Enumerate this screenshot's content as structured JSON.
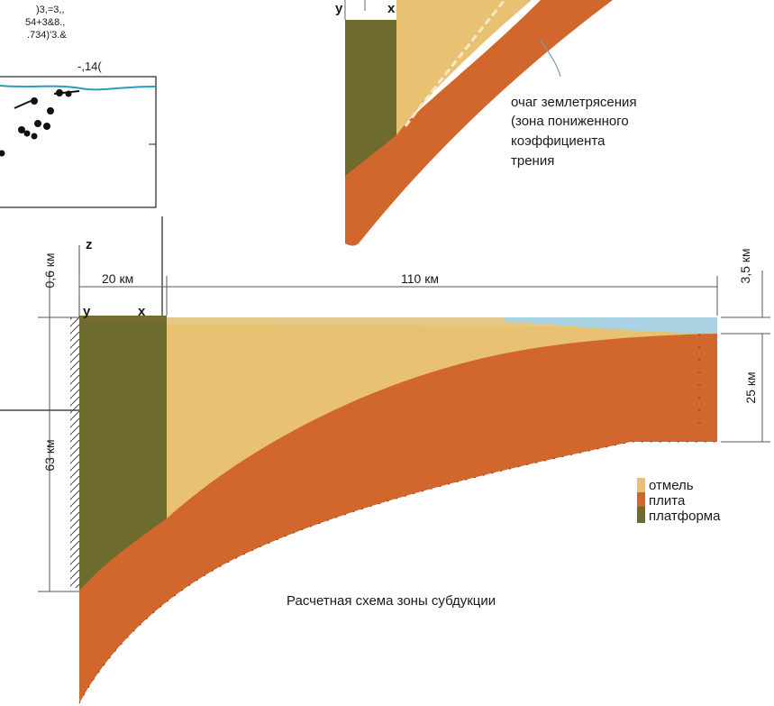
{
  "colors": {
    "shelf": "#e8c173",
    "plate": "#d2672e",
    "platform": "#6e6b2e",
    "platform_top": "#7b6a34",
    "water": "#a9d3e3",
    "coast_line": "#2a9bc1"
  },
  "top_inset": {
    "label_y": "y",
    "label_x": "x",
    "annotation_lines": [
      "очаг землетрясения",
      "(зона пониженного",
      "коэффициента",
      "трения"
    ]
  },
  "left_inset": {
    "header_lines": [
      ")3,=3,,",
      "54+3&8.,",
      ".734)'3.&"
    ],
    "corner_label": "-,14("
  },
  "diagram": {
    "axis_z": "z",
    "axis_y": "y",
    "axis_x": "x",
    "dim_top_left": "0,6 км",
    "dim_platform_width": "20 км",
    "dim_shelf_length": "110 км",
    "dim_top_right": "3,5 км",
    "dim_right_depth": "25 км",
    "dim_left_depth": "63 км",
    "caption": "Расчетная схема зоны субдукции"
  },
  "legend": {
    "items": [
      {
        "label": "отмель",
        "color_key": "shelf"
      },
      {
        "label": "плита",
        "color_key": "plate"
      },
      {
        "label": "платформа",
        "color_key": "platform"
      }
    ]
  }
}
